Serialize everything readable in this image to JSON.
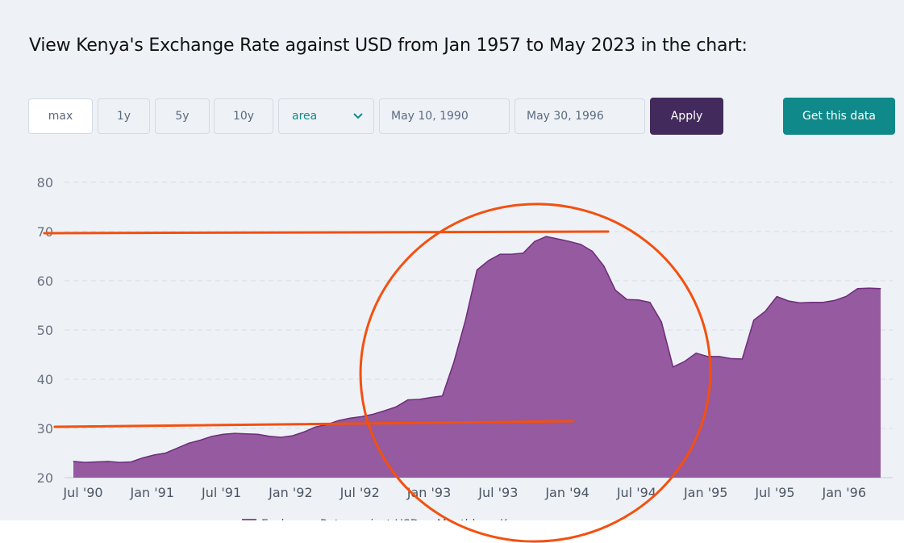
{
  "page": {
    "title": "View Kenya's Exchange Rate against USD from Jan 1957 to May 2023 in the chart:"
  },
  "controls": {
    "range_buttons": [
      "max",
      "1y",
      "5y",
      "10y"
    ],
    "active_range": "max",
    "chart_type_selected": "area",
    "start_date": "May 10, 1990",
    "end_date": "May 30, 1996",
    "apply_label": "Apply",
    "get_data_label": "Get this data"
  },
  "colors": {
    "area_fill": "#8e4f98",
    "area_line": "#6e2c7c",
    "annotation": "#f4500f",
    "apply_button": "#432a5c",
    "get_data_button": "#10898a"
  },
  "chart_data": {
    "type": "area",
    "title": "",
    "xlabel": "",
    "ylabel": "",
    "ylim": [
      20,
      80
    ],
    "yticks": [
      20,
      30,
      40,
      50,
      60,
      70,
      80
    ],
    "xlim": [
      "1990-07",
      "1996-06"
    ],
    "xticks": [
      "Jul '90",
      "Jan '91",
      "Jul '91",
      "Jan '92",
      "Jul '92",
      "Jan '93",
      "Jul '93",
      "Jan '94",
      "Jul '94",
      "Jan '95",
      "Jul '95",
      "Jan '96"
    ],
    "grid": "horizontal dashed",
    "legend": {
      "position": "bottom",
      "visible_text": "Exchange Rate against USD ... Monthly ... K"
    },
    "series": [
      {
        "x": [
          "1990-07",
          "1990-08",
          "1990-09",
          "1990-10",
          "1990-11",
          "1990-12",
          "1991-01",
          "1991-02",
          "1991-03",
          "1991-04",
          "1991-05",
          "1991-06",
          "1991-07",
          "1991-08",
          "1991-09",
          "1991-10",
          "1991-11",
          "1991-12",
          "1992-01",
          "1992-02",
          "1992-03",
          "1992-04",
          "1992-05",
          "1992-06",
          "1992-07",
          "1992-08",
          "1992-09",
          "1992-10",
          "1992-11",
          "1992-12",
          "1993-01",
          "1993-02",
          "1993-03",
          "1993-04",
          "1993-05",
          "1993-06",
          "1993-07",
          "1993-08",
          "1993-09",
          "1993-10",
          "1993-11",
          "1993-12",
          "1994-01",
          "1994-02",
          "1994-03",
          "1994-04",
          "1994-05",
          "1994-06",
          "1994-07",
          "1994-08",
          "1994-09",
          "1994-10",
          "1994-11",
          "1994-12",
          "1995-01",
          "1995-02",
          "1995-03",
          "1995-04",
          "1995-05",
          "1995-06",
          "1995-07",
          "1995-08",
          "1995-09",
          "1995-10",
          "1995-11",
          "1995-12",
          "1996-01",
          "1996-02",
          "1996-03",
          "1996-04",
          "1996-05"
        ],
        "values": [
          23.3,
          23.1,
          23.2,
          23.3,
          23.1,
          23.2,
          24.0,
          24.6,
          25.0,
          26.0,
          27.0,
          27.6,
          28.4,
          28.8,
          29.0,
          28.9,
          28.8,
          28.4,
          28.2,
          28.5,
          29.3,
          30.3,
          30.8,
          31.6,
          32.1,
          32.4,
          32.9,
          33.6,
          34.4,
          35.8,
          35.9,
          36.3,
          36.6,
          43.5,
          52.0,
          62.2,
          64.1,
          65.4,
          65.4,
          65.6,
          68.0,
          69.0,
          68.5,
          68.0,
          67.4,
          66.0,
          63.0,
          58.1,
          56.2,
          56.1,
          55.6,
          51.6,
          42.5,
          43.6,
          45.3,
          44.6,
          44.6,
          44.2,
          44.1,
          52.0,
          53.8,
          56.8,
          55.9,
          55.5,
          55.6,
          55.6,
          56.0,
          56.8,
          58.4,
          58.5,
          58.4
        ]
      }
    ],
    "annotations": [
      "upper horizontal line near 70",
      "lower horizontal line near 31",
      "circle around mid-1993 to 1994 peak"
    ]
  }
}
